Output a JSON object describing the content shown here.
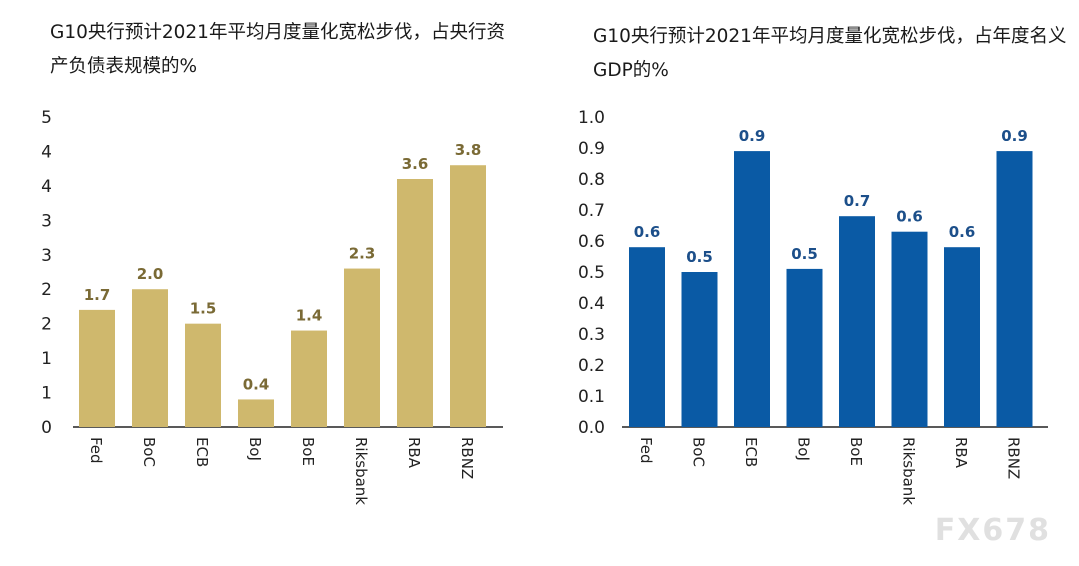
{
  "charts_meta": {
    "left_title": "G10央行预计2021年平均月度量化宽松步伐，占央行资产负债表规模的%",
    "right_title": "G10央行预计2021年平均月度量化宽松步伐，占年度名义GDP的%"
  },
  "watermark": "FX678",
  "chart_data": [
    {
      "type": "bar",
      "title": "G10央行预计2021年平均月度量化宽松步伐，占央行资产负债表规模的%",
      "categories": [
        "Fed",
        "BoC",
        "ECB",
        "BoJ",
        "BoE",
        "Riksbank",
        "RBA",
        "RBNZ"
      ],
      "values": [
        1.7,
        2.0,
        1.5,
        0.4,
        1.4,
        2.3,
        3.6,
        3.8
      ],
      "data_labels": [
        "1.7",
        "2.0",
        "1.5",
        "0.4",
        "1.4",
        "2.3",
        "3.6",
        "3.8"
      ],
      "y_tick_labels": [
        "0",
        "1",
        "1",
        "2",
        "2",
        "3",
        "3",
        "4",
        "4",
        "5"
      ],
      "ylim": [
        0,
        4.5
      ],
      "xlabel": "",
      "ylabel": "",
      "color": "#cfb86d",
      "label_color": "#7a6a35"
    },
    {
      "type": "bar",
      "title": "G10央行预计2021年平均月度量化宽松步伐，占年度名义GDP的%",
      "categories": [
        "Fed",
        "BoC",
        "ECB",
        "BoJ",
        "BoE",
        "Riksbank",
        "RBA",
        "RBNZ"
      ],
      "values": [
        0.58,
        0.5,
        0.89,
        0.51,
        0.68,
        0.63,
        0.58,
        0.89
      ],
      "data_labels": [
        "0.6",
        "0.5",
        "0.9",
        "0.5",
        "0.7",
        "0.6",
        "0.6",
        "0.9"
      ],
      "y_tick_labels": [
        "0.0",
        "0.1",
        "0.2",
        "0.3",
        "0.4",
        "0.5",
        "0.6",
        "0.7",
        "0.8",
        "0.9",
        "1.0"
      ],
      "ylim": [
        0,
        1.0
      ],
      "xlabel": "",
      "ylabel": "",
      "color": "#0a5aa5",
      "label_color": "#1c4f8a"
    }
  ]
}
